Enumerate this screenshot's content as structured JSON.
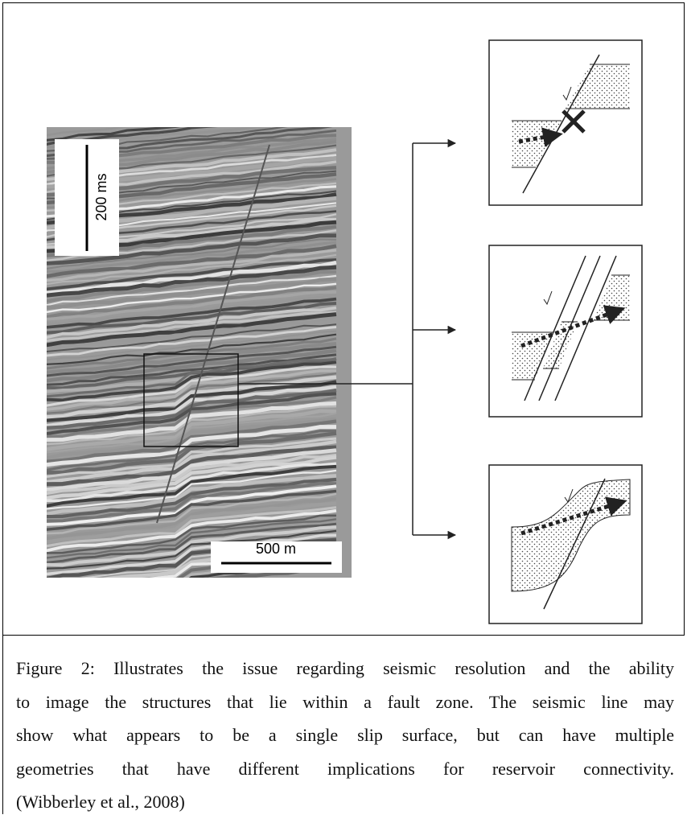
{
  "figure": {
    "time_scale": "200 ms",
    "distance_scale": "500 m"
  },
  "caption": {
    "lines": [
      "Figure 2: Illustrates the issue regarding seismic resolution and the ability",
      "to image the structures that lie within a fault zone.  The seismic line may",
      "show what appears to be a single slip surface, but can have multiple",
      "geometries that have different implications for reservoir connectivity.",
      "(Wibberley et al., 2008)"
    ]
  }
}
